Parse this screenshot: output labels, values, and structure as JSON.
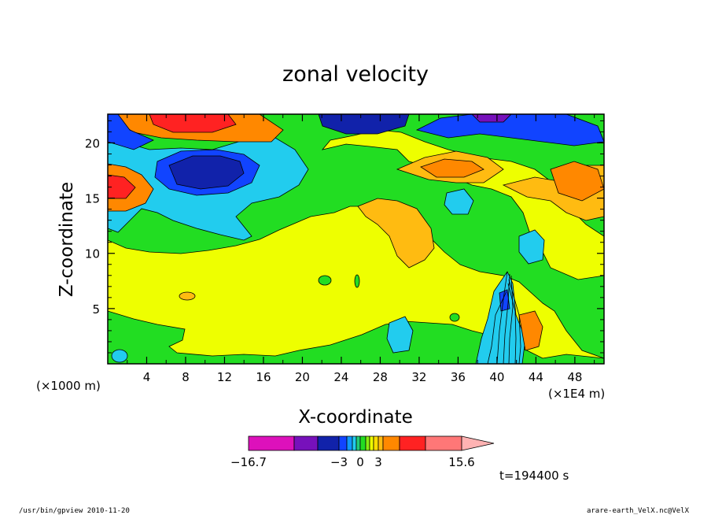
{
  "chart_data": {
    "type": "heatmap",
    "title": "zonal velocity",
    "xlabel": "X-coordinate",
    "ylabel": "Z-coordinate",
    "x_unit": "(×1E4 m)",
    "y_unit": "(×1000 m)",
    "xlim": [
      0,
      51
    ],
    "ylim": [
      0,
      22.6
    ],
    "x_ticks": [
      "4",
      "8",
      "12",
      "16",
      "20",
      "24",
      "28",
      "32",
      "36",
      "40",
      "44",
      "48"
    ],
    "y_ticks": [
      "5",
      "10",
      "15",
      "20"
    ],
    "colorbar": {
      "levels": [
        -16.7,
        -12,
        -9,
        -6,
        -4.5,
        -3,
        -2,
        -1,
        0,
        1,
        2,
        3,
        4.5,
        6,
        9,
        12,
        15.6
      ],
      "colors": [
        "#dd11bb",
        "#7711bb",
        "#1122aa",
        "#1144ff",
        "#1199ff",
        "#22ccee",
        "#22cc77",
        "#22dd22",
        "#88ee11",
        "#eeff00",
        "#ffdd00",
        "#ffbb11",
        "#ff8800",
        "#ff2222",
        "#ff7777",
        "#ffb3b3"
      ],
      "tick_labels": [
        {
          "value": -16.7,
          "label": "−16.7"
        },
        {
          "value": -3,
          "label": "−3"
        },
        {
          "value": 0,
          "label": "0"
        },
        {
          "value": 3,
          "label": "3"
        },
        {
          "value": 15.6,
          "label": "15.6"
        }
      ]
    }
  },
  "time_label": "t=194400 s",
  "footer_left": "/usr/bin/gpview   2010-11-20",
  "footer_right": "arare-earth_VelX.nc@VelX"
}
